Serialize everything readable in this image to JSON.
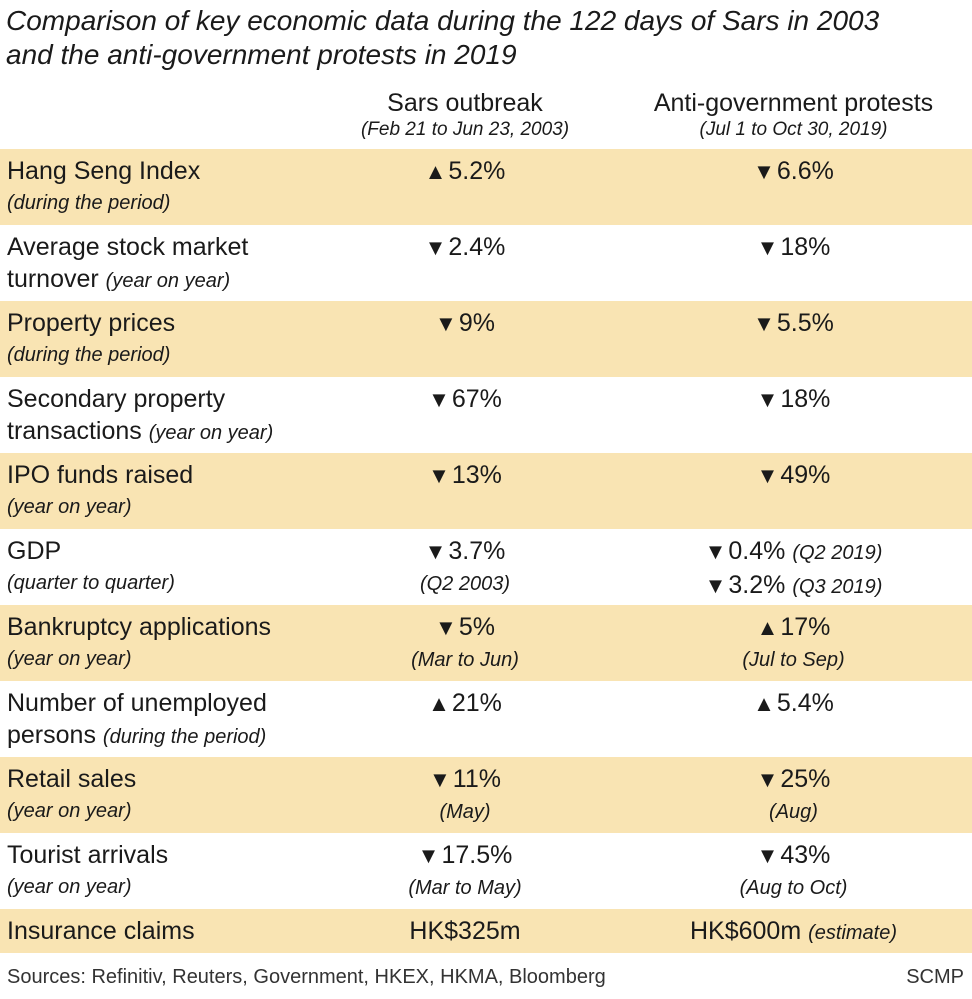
{
  "title": {
    "line1": "Comparison of key economic data during the 122 days of Sars in 2003",
    "line2": "and the anti-government protests in 2019"
  },
  "columns": [
    {
      "heading": "Sars outbreak",
      "subheading": "(Feb 21 to Jun 23, 2003)"
    },
    {
      "heading": "Anti-government protests",
      "subheading": "(Jul 1 to Oct 30, 2019)"
    }
  ],
  "rows": [
    {
      "label1": "Hang Seng Index",
      "note": "(during the period)",
      "c1": {
        "dir": "▲",
        "val": "5.2%"
      },
      "c2": {
        "dir": "▼",
        "val": "6.6%"
      }
    },
    {
      "label1": "Average stock market",
      "label2": "turnover",
      "note": "(year on year)",
      "c1": {
        "dir": "▼",
        "val": "2.4%"
      },
      "c2": {
        "dir": "▼",
        "val": "18%"
      }
    },
    {
      "label1": "Property prices",
      "note": "(during the period)",
      "c1": {
        "dir": "▼",
        "val": "9%"
      },
      "c2": {
        "dir": "▼",
        "val": "5.5%"
      }
    },
    {
      "label1": "Secondary property",
      "label2": "transactions",
      "note": "(year on year)",
      "c1": {
        "dir": "▼",
        "val": "67%"
      },
      "c2": {
        "dir": "▼",
        "val": "18%"
      }
    },
    {
      "label1": "IPO funds raised",
      "note": "(year on year)",
      "c1": {
        "dir": "▼",
        "val": "13%"
      },
      "c2": {
        "dir": "▼",
        "val": "49%"
      }
    },
    {
      "label1": "GDP",
      "note": "(quarter to quarter)",
      "c1": {
        "dir": "▼",
        "val": "3.7%",
        "sub": "(Q2 2003)"
      },
      "c2": {
        "dir": "▼",
        "val": "0.4%",
        "val_note": "(Q2 2019)",
        "dir2": "▼",
        "val2": "3.2%",
        "val2_note": "(Q3 2019)"
      }
    },
    {
      "label1": "Bankruptcy applications",
      "note": "(year on year)",
      "c1": {
        "dir": "▼",
        "val": "5%",
        "sub": "(Mar to Jun)"
      },
      "c2": {
        "dir": "▲",
        "val": "17%",
        "sub": "(Jul to Sep)"
      }
    },
    {
      "label1": "Number of unemployed",
      "label2": "persons",
      "note": "(during the period)",
      "c1": {
        "dir": "▲",
        "val": "21%"
      },
      "c2": {
        "dir": "▲",
        "val": "5.4%"
      }
    },
    {
      "label1": "Retail sales",
      "note": "(year on year)",
      "c1": {
        "dir": "▼",
        "val": "11%",
        "sub": "(May)"
      },
      "c2": {
        "dir": "▼",
        "val": "25%",
        "sub": "(Aug)"
      }
    },
    {
      "label1": "Tourist arrivals",
      "note": "(year on year)",
      "c1": {
        "dir": "▼",
        "val": "17.5%",
        "sub": "(Mar to May)"
      },
      "c2": {
        "dir": "▼",
        "val": "43%",
        "sub": "(Aug to Oct)"
      }
    },
    {
      "label1": "Insurance claims",
      "c1": {
        "val": "HK$325m"
      },
      "c2": {
        "val": "HK$600m",
        "val_note": "(estimate)"
      }
    }
  ],
  "footer": {
    "sources": "Sources: Refinitiv, Reuters, Government, HKEX, HKMA, Bloomberg",
    "credit": "SCMP"
  },
  "colors": {
    "shade": "#f9e4b3",
    "text": "#1a1a1a"
  }
}
